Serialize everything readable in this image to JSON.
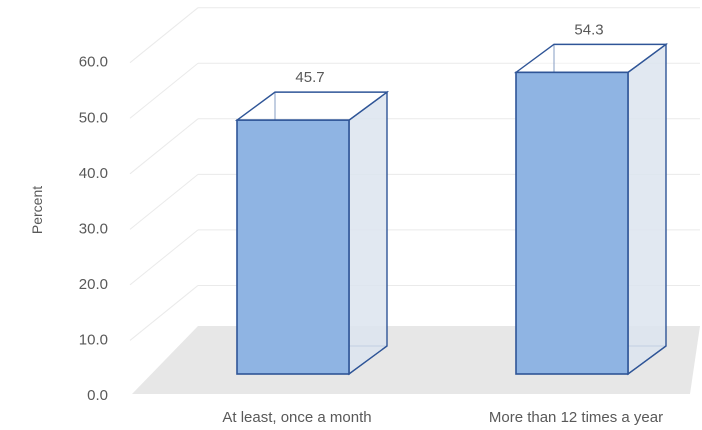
{
  "chart_data": {
    "type": "bar",
    "style": "3d-column",
    "categories": [
      "At least, once a month",
      "More than 12 times a year"
    ],
    "values": [
      45.7,
      54.3
    ],
    "data_labels": [
      "45.7",
      "54.3"
    ],
    "title": "",
    "xlabel": "",
    "ylabel": "Percent",
    "ylim": [
      0,
      60
    ],
    "yticks": [
      0,
      10,
      20,
      30,
      40,
      50,
      60
    ],
    "ytick_labels": [
      "0.0",
      "10.0",
      "20.0",
      "30.0",
      "40.0",
      "50.0",
      "60.0"
    ],
    "grid": true,
    "legend": "none",
    "colors": {
      "bar_fill": "#8FB4E3",
      "bar_edge": "#2F5597",
      "bar_side": "#DCE4EE",
      "floor": "#E7E7E7",
      "grid": "#EAEAEA",
      "text": "#595959"
    }
  }
}
